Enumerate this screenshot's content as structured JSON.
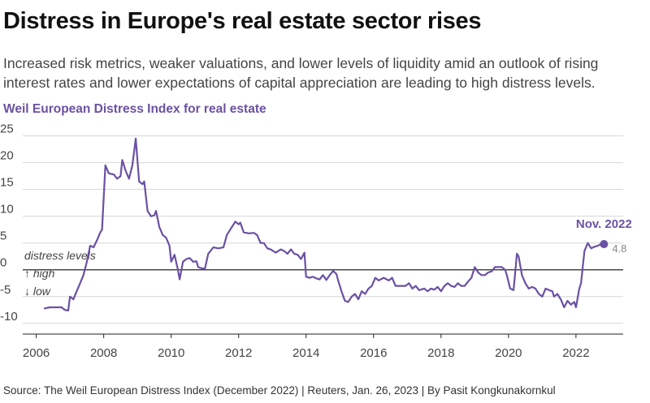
{
  "title": "Distress in Europe's real estate sector rises",
  "subtitle": "Increased risk metrics, weaker valuations, and lower levels of liquidity amid an outlook of rising interest rates and lower expectations of capital appreciation are leading to high distress levels.",
  "source": "Source: The Weil European Distress Index (December 2022) | Reuters, Jan. 26, 2023 | By Pasit Kongkunakornkul",
  "chart_data": {
    "type": "line",
    "title": "Weil European Distress Index for real estate",
    "xlabel": "",
    "ylabel": "",
    "xlim": [
      2005.6,
      2023.4
    ],
    "ylim": [
      -12,
      26
    ],
    "x_ticks": [
      2006,
      2008,
      2010,
      2012,
      2014,
      2016,
      2018,
      2020,
      2022
    ],
    "x_tick_labels": [
      "2006",
      "2008",
      "2010",
      "2012",
      "2014",
      "2016",
      "2018",
      "2020",
      "2022"
    ],
    "y_ticks": [
      -10,
      -5,
      0,
      5,
      10,
      15,
      20,
      25
    ],
    "y_tick_labels": [
      "-10",
      "-5",
      "0",
      "5",
      "10",
      "15",
      "20",
      "25"
    ],
    "grid": true,
    "zero_line": 0,
    "annotations": {
      "high": "↑ high",
      "low": "↓ low",
      "distress": "distress levels",
      "last_label": "Nov. 2022",
      "last_value": "4.8"
    },
    "series": [
      {
        "name": "Weil European Distress Index for real estate",
        "color": "#6a51a3",
        "points": [
          [
            2006.25,
            -7.2
          ],
          [
            2006.4,
            -7.0
          ],
          [
            2006.6,
            -7.0
          ],
          [
            2006.75,
            -7.0
          ],
          [
            2006.85,
            -7.5
          ],
          [
            2006.95,
            -7.6
          ],
          [
            2007.0,
            -5.0
          ],
          [
            2007.1,
            -5.5
          ],
          [
            2007.2,
            -4.0
          ],
          [
            2007.3,
            -2.5
          ],
          [
            2007.4,
            -1.0
          ],
          [
            2007.5,
            1.5
          ],
          [
            2007.6,
            4.5
          ],
          [
            2007.7,
            4.2
          ],
          [
            2007.8,
            5.5
          ],
          [
            2007.9,
            7.0
          ],
          [
            2007.95,
            7.5
          ],
          [
            2008.05,
            19.5
          ],
          [
            2008.15,
            18.0
          ],
          [
            2008.3,
            17.8
          ],
          [
            2008.4,
            17.0
          ],
          [
            2008.5,
            17.5
          ],
          [
            2008.55,
            20.5
          ],
          [
            2008.65,
            18.5
          ],
          [
            2008.75,
            17.0
          ],
          [
            2008.85,
            19.5
          ],
          [
            2008.95,
            24.5
          ],
          [
            2009.05,
            16.5
          ],
          [
            2009.15,
            16.0
          ],
          [
            2009.2,
            16.5
          ],
          [
            2009.3,
            11.0
          ],
          [
            2009.4,
            10.0
          ],
          [
            2009.5,
            10.2
          ],
          [
            2009.55,
            11.0
          ],
          [
            2009.65,
            8.0
          ],
          [
            2009.75,
            6.5
          ],
          [
            2009.85,
            6.0
          ],
          [
            2009.95,
            4.5
          ],
          [
            2010.0,
            1.5
          ],
          [
            2010.1,
            2.8
          ],
          [
            2010.2,
            0.0
          ],
          [
            2010.25,
            -1.8
          ],
          [
            2010.35,
            1.5
          ],
          [
            2010.45,
            2.0
          ],
          [
            2010.55,
            2.2
          ],
          [
            2010.65,
            1.5
          ],
          [
            2010.75,
            1.6
          ],
          [
            2010.8,
            0.5
          ],
          [
            2010.9,
            0.3
          ],
          [
            2011.0,
            0.2
          ],
          [
            2011.1,
            3.0
          ],
          [
            2011.25,
            4.2
          ],
          [
            2011.4,
            4.0
          ],
          [
            2011.55,
            4.2
          ],
          [
            2011.65,
            6.5
          ],
          [
            2011.8,
            8.0
          ],
          [
            2011.9,
            9.0
          ],
          [
            2012.0,
            8.5
          ],
          [
            2012.05,
            8.8
          ],
          [
            2012.15,
            7.0
          ],
          [
            2012.3,
            6.8
          ],
          [
            2012.45,
            6.9
          ],
          [
            2012.55,
            6.5
          ],
          [
            2012.65,
            5.0
          ],
          [
            2012.75,
            5.0
          ],
          [
            2012.85,
            4.0
          ],
          [
            2012.95,
            3.8
          ],
          [
            2013.1,
            3.2
          ],
          [
            2013.25,
            3.8
          ],
          [
            2013.35,
            3.5
          ],
          [
            2013.45,
            3.0
          ],
          [
            2013.55,
            3.8
          ],
          [
            2013.65,
            3.0
          ],
          [
            2013.75,
            2.8
          ],
          [
            2013.85,
            2.0
          ],
          [
            2013.95,
            3.2
          ],
          [
            2014.0,
            -1.3
          ],
          [
            2014.1,
            -1.5
          ],
          [
            2014.2,
            -1.3
          ],
          [
            2014.3,
            -1.6
          ],
          [
            2014.4,
            -1.8
          ],
          [
            2014.5,
            -1.0
          ],
          [
            2014.6,
            -1.9
          ],
          [
            2014.7,
            -1.0
          ],
          [
            2014.8,
            -0.2
          ],
          [
            2014.9,
            -0.8
          ],
          [
            2014.95,
            -2.0
          ],
          [
            2015.05,
            -4.0
          ],
          [
            2015.15,
            -5.8
          ],
          [
            2015.25,
            -6.0
          ],
          [
            2015.35,
            -5.0
          ],
          [
            2015.45,
            -4.5
          ],
          [
            2015.55,
            -5.5
          ],
          [
            2015.65,
            -4.0
          ],
          [
            2015.75,
            -4.5
          ],
          [
            2015.85,
            -3.5
          ],
          [
            2015.95,
            -3.0
          ],
          [
            2016.05,
            -1.5
          ],
          [
            2016.15,
            -2.0
          ],
          [
            2016.3,
            -1.5
          ],
          [
            2016.45,
            -2.0
          ],
          [
            2016.55,
            -1.5
          ],
          [
            2016.65,
            -3.0
          ],
          [
            2016.8,
            -3.0
          ],
          [
            2016.95,
            -3.0
          ],
          [
            2017.05,
            -2.5
          ],
          [
            2017.15,
            -3.5
          ],
          [
            2017.25,
            -3.0
          ],
          [
            2017.35,
            -3.8
          ],
          [
            2017.5,
            -3.5
          ],
          [
            2017.6,
            -4.0
          ],
          [
            2017.7,
            -3.5
          ],
          [
            2017.8,
            -3.7
          ],
          [
            2017.9,
            -3.2
          ],
          [
            2018.0,
            -4.0
          ],
          [
            2018.1,
            -3.0
          ],
          [
            2018.2,
            -2.5
          ],
          [
            2018.3,
            -3.0
          ],
          [
            2018.4,
            -3.2
          ],
          [
            2018.5,
            -2.5
          ],
          [
            2018.6,
            -3.0
          ],
          [
            2018.7,
            -3.0
          ],
          [
            2018.8,
            -2.2
          ],
          [
            2018.9,
            -1.5
          ],
          [
            2019.0,
            0.5
          ],
          [
            2019.1,
            -0.5
          ],
          [
            2019.2,
            -1.0
          ],
          [
            2019.3,
            -1.0
          ],
          [
            2019.4,
            -0.5
          ],
          [
            2019.5,
            -0.3
          ],
          [
            2019.6,
            0.5
          ],
          [
            2019.7,
            0.5
          ],
          [
            2019.8,
            0.5
          ],
          [
            2019.9,
            0.0
          ],
          [
            2019.95,
            -1.0
          ],
          [
            2020.05,
            -3.5
          ],
          [
            2020.15,
            -3.8
          ],
          [
            2020.25,
            3.0
          ],
          [
            2020.3,
            2.5
          ],
          [
            2020.4,
            -1.0
          ],
          [
            2020.5,
            -2.5
          ],
          [
            2020.6,
            -3.5
          ],
          [
            2020.7,
            -3.2
          ],
          [
            2020.8,
            -3.5
          ],
          [
            2020.9,
            -4.5
          ],
          [
            2021.0,
            -5.0
          ],
          [
            2021.1,
            -3.5
          ],
          [
            2021.2,
            -3.8
          ],
          [
            2021.3,
            -4.0
          ],
          [
            2021.35,
            -5.0
          ],
          [
            2021.45,
            -4.5
          ],
          [
            2021.55,
            -5.5
          ],
          [
            2021.65,
            -7.0
          ],
          [
            2021.75,
            -5.8
          ],
          [
            2021.85,
            -6.5
          ],
          [
            2021.95,
            -6.0
          ],
          [
            2022.0,
            -7.0
          ],
          [
            2022.1,
            -3.5
          ],
          [
            2022.15,
            -2.5
          ],
          [
            2022.25,
            3.5
          ],
          [
            2022.35,
            5.0
          ],
          [
            2022.45,
            4.0
          ],
          [
            2022.55,
            4.3
          ],
          [
            2022.65,
            4.5
          ],
          [
            2022.75,
            4.8
          ],
          [
            2022.83,
            4.8
          ]
        ]
      }
    ]
  }
}
